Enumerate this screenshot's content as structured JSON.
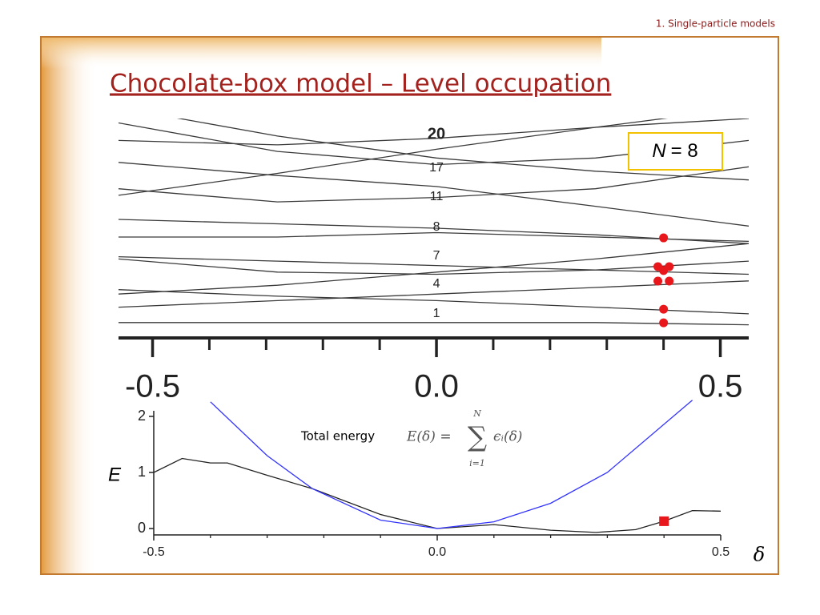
{
  "header": "1. Single-particle models",
  "title": "Chocolate-box model – Level occupation",
  "chart_data": [
    {
      "type": "line",
      "xlim": [
        -0.56,
        0.55
      ],
      "ylim": [
        0,
        10
      ],
      "xticks": [
        -0.5,
        {
          "value": 0,
          "label": "0.0"
        },
        0.5
      ],
      "xminor": [
        -0.4,
        -0.3,
        -0.2,
        -0.1,
        0.1,
        0.2,
        0.3,
        0.4
      ],
      "line_color": "#3a3a3a",
      "x": [
        -0.56,
        -0.28,
        0,
        0.28,
        0.55
      ],
      "series": [
        {
          "values": [
            0.7,
            0.7,
            0.7,
            0.7,
            0.6
          ]
        },
        {
          "values": [
            1.4,
            1.7,
            2.0,
            2.3,
            2.6
          ]
        },
        {
          "values": [
            2.2,
            1.9,
            1.7,
            1.4,
            1.1
          ]
        },
        {
          "values": [
            3.6,
            3.0,
            2.9,
            3.1,
            3.5
          ]
        },
        {
          "values": [
            3.7,
            3.5,
            3.3,
            3.1,
            2.9
          ]
        },
        {
          "values": [
            2.0,
            2.4,
            3.0,
            3.6,
            4.3
          ]
        },
        {
          "values": [
            4.6,
            4.6,
            4.8,
            4.6,
            4.4
          ]
        },
        {
          "values": [
            5.4,
            5.2,
            5.0,
            4.7,
            4.3
          ]
        },
        {
          "values": [
            6.8,
            6.2,
            6.4,
            6.8,
            7.8
          ]
        },
        {
          "values": [
            8.0,
            7.4,
            6.9,
            6.0,
            5.1
          ]
        },
        {
          "values": [
            9.8,
            8.5,
            7.9,
            8.2,
            9.0
          ]
        },
        {
          "values": [
            6.5,
            7.5,
            8.6,
            9.6,
            10.5
          ]
        },
        {
          "values": [
            10.5,
            9.2,
            8.2,
            7.6,
            7.2
          ]
        },
        {
          "values": [
            9.0,
            8.8,
            9.1,
            9.6,
            10.0
          ]
        }
      ],
      "points": {
        "color": "#e8171b",
        "x": [
          0.4,
          0.4,
          0.39,
          0.41,
          0.4,
          0.39,
          0.41,
          0.4
        ],
        "values": [
          0.69,
          1.31,
          2.59,
          2.59,
          3.07,
          3.25,
          3.25,
          4.56
        ]
      },
      "level_labels": [
        1,
        4,
        7,
        8,
        11,
        17,
        20
      ],
      "box_label": {
        "variable": "N",
        "text": "= 8"
      }
    },
    {
      "type": "line",
      "xlim": [
        -0.5,
        0.5
      ],
      "ylim": [
        -0.1,
        2.1
      ],
      "xticks": [
        -0.5,
        {
          "value": 0,
          "label": "0.0"
        },
        0.5
      ],
      "xminor": [
        -0.4,
        -0.3,
        -0.2,
        -0.1,
        0.1,
        0.2,
        0.3,
        0.4
      ],
      "yticks": [
        0,
        1,
        2
      ],
      "ylabel": "E",
      "xlabel": "δ",
      "annotation": "Total energy",
      "formula": {
        "lhs": "E(δ) =",
        "operator": "∑",
        "upper": "N",
        "lower": "i=1",
        "rhs": "ϵᵢ(δ)"
      },
      "series": [
        {
          "color": "#222222",
          "x": [
            -0.5,
            -0.45,
            -0.4,
            -0.37,
            -0.3,
            -0.22,
            -0.1,
            0,
            0.1,
            0.2,
            0.28,
            0.35,
            0.4,
            0.45,
            0.5
          ],
          "values": [
            1.0,
            1.25,
            1.17,
            1.17,
            0.95,
            0.71,
            0.25,
            0.0,
            0.07,
            -0.03,
            -0.07,
            -0.02,
            0.13,
            0.32,
            0.31
          ]
        },
        {
          "color": "#3333ff",
          "x": [
            -0.4,
            -0.3,
            -0.22,
            -0.1,
            0,
            0.1,
            0.2,
            0.3,
            0.45
          ],
          "values": [
            2.26,
            1.3,
            0.71,
            0.15,
            0,
            0.12,
            0.45,
            1.0,
            2.29
          ]
        }
      ],
      "marker": {
        "color": "#e8171b",
        "x": 0.4,
        "value": 0.13
      }
    }
  ]
}
